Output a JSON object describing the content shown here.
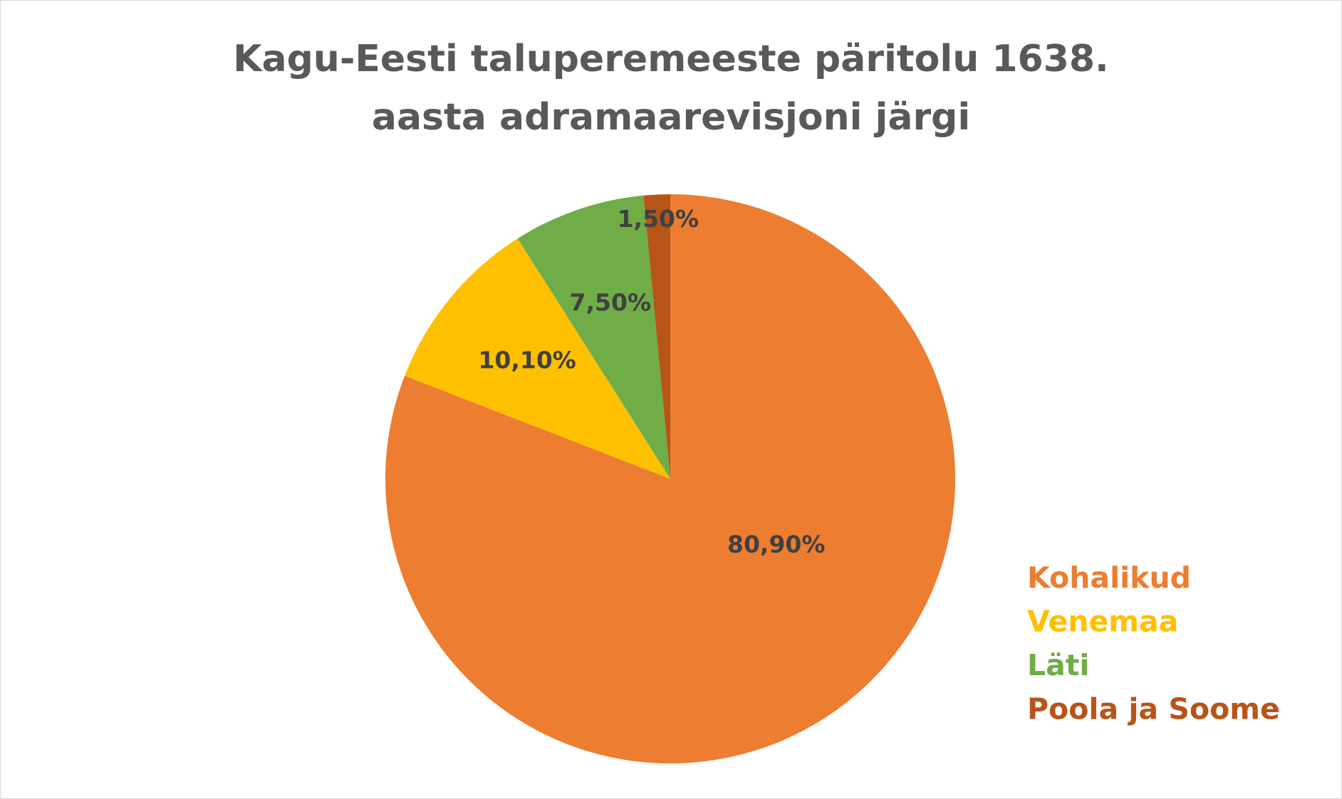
{
  "chart_data": {
    "type": "pie",
    "title": "Kagu-Eesti taluperemeeste päritolu 1638. aasta adramaarevisjoni järgi",
    "categories": [
      "Kohalikud",
      "Venemaa",
      "Läti",
      "Poola ja Soome"
    ],
    "values": [
      80.9,
      10.1,
      7.5,
      1.5
    ],
    "value_labels": [
      "80,90%",
      "10,10%",
      "7,50%",
      "1,50%"
    ],
    "colors": [
      "#ed7d31",
      "#ffc000",
      "#70ad47",
      "#b85418"
    ],
    "legend": "right"
  }
}
